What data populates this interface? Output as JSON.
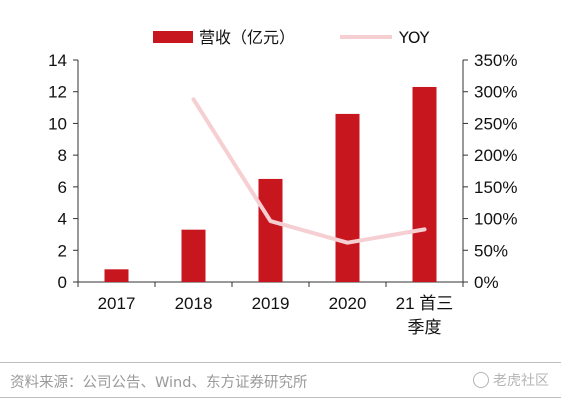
{
  "chart_data": {
    "type": "bar+line",
    "categories": [
      "2017",
      "2018",
      "2019",
      "2020",
      "21 首三\n季度"
    ],
    "bar_series": {
      "name": "营收（亿元）",
      "axis": "left",
      "values": [
        0.8,
        3.3,
        6.5,
        10.6,
        12.3
      ],
      "color": "#c8161e"
    },
    "line_series": {
      "name": "YOY",
      "axis": "right",
      "values": [
        null,
        2.88,
        0.96,
        0.62,
        0.83
      ],
      "color": "#f6cfd2"
    },
    "left_axis": {
      "ylim": [
        0,
        14
      ],
      "ticks": [
        0,
        2,
        4,
        6,
        8,
        10,
        12,
        14
      ],
      "tick_labels": [
        "0",
        "2",
        "4",
        "6",
        "8",
        "10",
        "12",
        "14"
      ]
    },
    "right_axis": {
      "ylim": [
        0,
        3.5
      ],
      "ticks": [
        0,
        0.5,
        1.0,
        1.5,
        2.0,
        2.5,
        3.0,
        3.5
      ],
      "tick_labels": [
        "0%",
        "50%",
        "100%",
        "150%",
        "200%",
        "250%",
        "300%",
        "350%"
      ]
    },
    "legend_position": "top-center",
    "grid": false
  },
  "source_text": "资料来源：公司公告、Wind、东方证券研究所",
  "watermark_text": "老虎社区"
}
